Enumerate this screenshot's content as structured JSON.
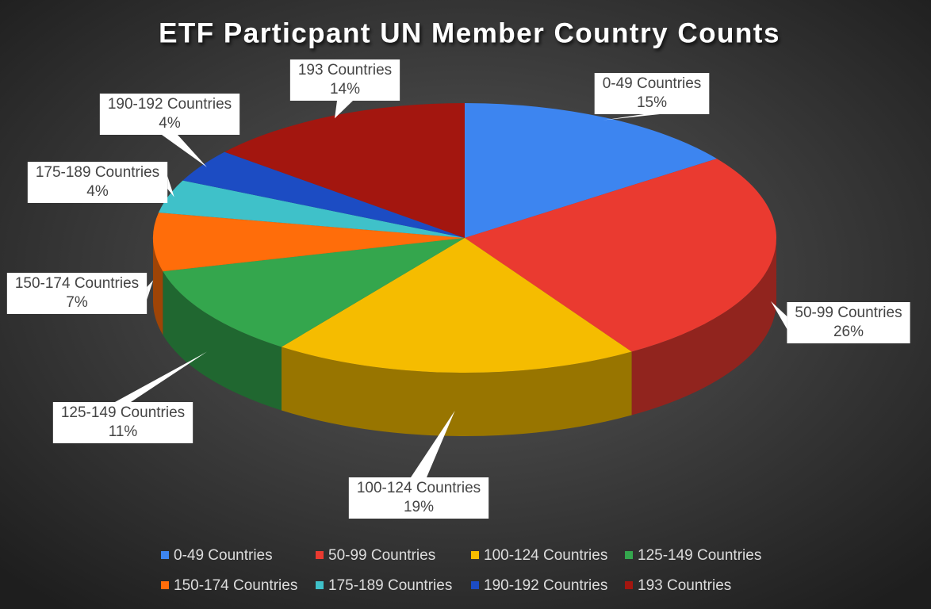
{
  "chart_data": {
    "type": "pie",
    "title": "ETF Particpant UN Member Country Counts",
    "categories": [
      "0-49 Countries",
      "50-99 Countries",
      "100-124 Countries",
      "125-149 Countries",
      "150-174 Countries",
      "175-189 Countries",
      "190-192 Countries",
      "193 Countries"
    ],
    "values": [
      15,
      26,
      19,
      11,
      7,
      4,
      4,
      14
    ],
    "value_labels": [
      "15%",
      "26%",
      "19%",
      "11%",
      "7%",
      "4%",
      "4%",
      "14%"
    ],
    "colors": [
      "#3d85f0",
      "#ea3a30",
      "#f5bc00",
      "#34a64d",
      "#ff6d0a",
      "#3fc1c9",
      "#1c4cc3",
      "#a3160f"
    ]
  }
}
